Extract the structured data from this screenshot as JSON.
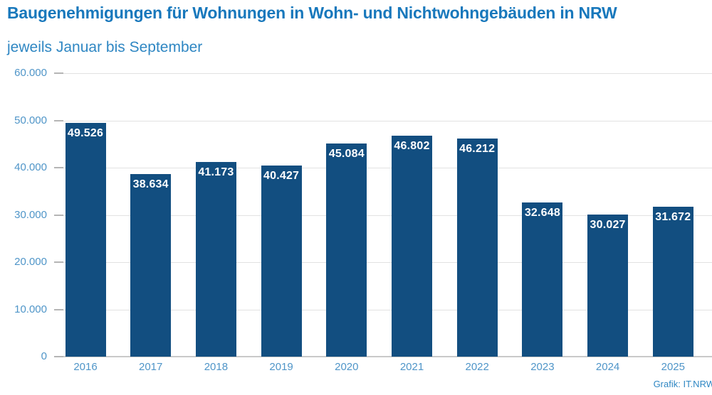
{
  "colors": {
    "bar": "#124e80",
    "title_text": "#1878bc",
    "subtitle_text": "#2f87c3",
    "axis_label": "#4f95c8",
    "value_label": "#ffffff",
    "gridline": "#e2e2e2",
    "axis_tick": "#b5b5b5",
    "baseline": "#c9c9c9",
    "credit_text": "#2f87c3"
  },
  "credit": "Grafik: IT.NRW",
  "chart_data": {
    "type": "bar",
    "title": "Baugenehmigungen für Wohnungen in Wohn- und Nichtwohngebäuden in NRW",
    "subtitle": "jeweils Januar bis September",
    "categories": [
      "2016",
      "2017",
      "2018",
      "2019",
      "2020",
      "2021",
      "2022",
      "2023",
      "2024",
      "2025"
    ],
    "values": [
      49526,
      38634,
      41173,
      40427,
      45084,
      46802,
      46212,
      32648,
      30027,
      31672
    ],
    "value_labels": [
      "49.526",
      "38.634",
      "41.173",
      "40.427",
      "45.084",
      "46.802",
      "46.212",
      "32.648",
      "30.027",
      "31.672"
    ],
    "xlabel": "",
    "ylabel": "",
    "ylim": [
      0,
      60000
    ],
    "ytick_interval": 10000,
    "ytick_labels": [
      "0",
      "10.000",
      "20.000",
      "30.000",
      "40.000",
      "50.000",
      "60.000"
    ],
    "grid": "horizontal",
    "legend": "none",
    "bar_color": "#124e80"
  }
}
